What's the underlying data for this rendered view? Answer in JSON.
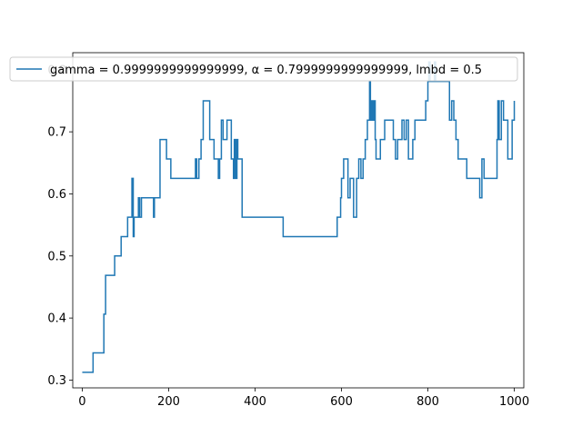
{
  "chart_data": {
    "type": "line",
    "xlim": [
      -22,
      1022
    ],
    "ylim": [
      0.2875,
      0.8275
    ],
    "xticks": [
      0,
      200,
      400,
      600,
      800,
      1000
    ],
    "yticks": [
      0.3,
      0.4,
      0.5,
      0.6,
      0.7,
      0.8
    ],
    "xtick_labels": [
      "0",
      "200",
      "400",
      "600",
      "800",
      "1000"
    ],
    "ytick_labels": [
      "0.3",
      "0.4",
      "0.5",
      "0.6",
      "0.7",
      "0.8"
    ],
    "grid": false,
    "legend_position": "top",
    "line_color": "#1f77b4",
    "series": [
      {
        "name": "gamma = 0.9999999999999999, α = 0.7999999999999999, lmbd = 0.5",
        "step": true,
        "x": [
          0,
          25,
          50,
          54,
          57,
          75,
          90,
          105,
          115,
          118,
          120,
          125,
          130,
          133,
          137,
          145,
          165,
          167,
          175,
          180,
          195,
          205,
          260,
          262,
          265,
          270,
          275,
          280,
          295,
          305,
          315,
          318,
          322,
          326,
          330,
          335,
          338,
          345,
          350,
          352,
          355,
          358,
          360,
          370,
          465,
          590,
          598,
          600,
          605,
          615,
          620,
          628,
          635,
          640,
          645,
          650,
          655,
          660,
          665,
          667,
          670,
          672,
          675,
          678,
          680,
          690,
          700,
          720,
          725,
          730,
          735,
          740,
          745,
          750,
          755,
          765,
          770,
          775,
          795,
          800,
          802,
          805,
          815,
          818,
          820,
          825,
          830,
          850,
          855,
          860,
          865,
          870,
          880,
          890,
          920,
          925,
          930,
          960,
          962,
          965,
          970,
          975,
          985,
          995,
          1000
        ],
        "y": [
          0.3125,
          0.34375,
          0.40625,
          0.46875,
          0.46875,
          0.5,
          0.53125,
          0.5625,
          0.625,
          0.53125,
          0.5625,
          0.5625,
          0.59375,
          0.5625,
          0.59375,
          0.59375,
          0.5625,
          0.59375,
          0.59375,
          0.6875,
          0.65625,
          0.625,
          0.625,
          0.65625,
          0.625,
          0.65625,
          0.6875,
          0.75,
          0.6875,
          0.65625,
          0.625,
          0.65625,
          0.71875,
          0.6875,
          0.6875,
          0.71875,
          0.71875,
          0.65625,
          0.625,
          0.6875,
          0.625,
          0.6875,
          0.65625,
          0.5625,
          0.53125,
          0.5625,
          0.59375,
          0.625,
          0.65625,
          0.59375,
          0.625,
          0.5625,
          0.625,
          0.65625,
          0.625,
          0.65625,
          0.6875,
          0.71875,
          0.78125,
          0.71875,
          0.75,
          0.71875,
          0.75,
          0.6875,
          0.65625,
          0.6875,
          0.71875,
          0.6875,
          0.65625,
          0.6875,
          0.6875,
          0.71875,
          0.6875,
          0.71875,
          0.65625,
          0.6875,
          0.71875,
          0.71875,
          0.75,
          0.78125,
          0.8125,
          0.78125,
          0.8125,
          0.78125,
          0.78125,
          0.78125,
          0.78125,
          0.71875,
          0.75,
          0.71875,
          0.6875,
          0.65625,
          0.65625,
          0.625,
          0.59375,
          0.65625,
          0.625,
          0.6875,
          0.75,
          0.6875,
          0.75,
          0.71875,
          0.65625,
          0.71875,
          0.75
        ]
      }
    ]
  }
}
